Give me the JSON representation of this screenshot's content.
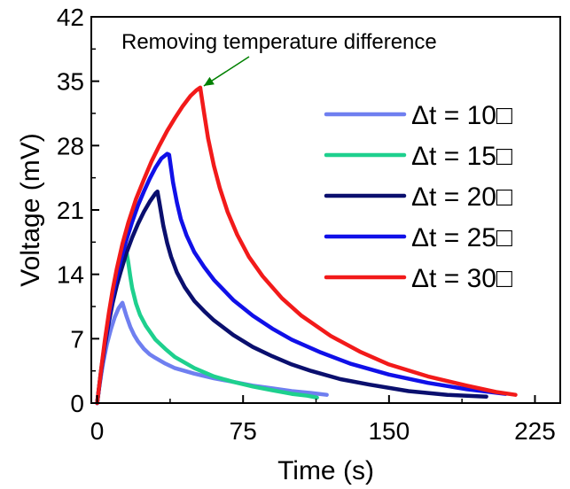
{
  "chart_data": {
    "type": "line",
    "xlabel": "Time (s)",
    "ylabel": "Voltage (mV)",
    "xlim": [
      -3,
      238
    ],
    "ylim": [
      0,
      42
    ],
    "xticks": [
      0,
      75,
      150,
      225
    ],
    "yticks": [
      0,
      7,
      14,
      21,
      28,
      35,
      42
    ],
    "grid": false,
    "legend_position": "right",
    "annotation": {
      "text": "Removing temperature difference",
      "color": "#008000",
      "points_to": [
        53,
        34
      ]
    },
    "series": [
      {
        "name": "Δt = 10□",
        "color": "#6F7FF0",
        "x": [
          0,
          1,
          2,
          3,
          5,
          7,
          9,
          11,
          13,
          15,
          17,
          19,
          21,
          24,
          27,
          30,
          35,
          40,
          50,
          60,
          70,
          80,
          90,
          100,
          110,
          118
        ],
        "y": [
          0,
          1.6,
          3.0,
          4.3,
          6.4,
          8.0,
          9.3,
          10.3,
          10.9,
          9.5,
          8.3,
          7.4,
          6.7,
          5.9,
          5.3,
          4.9,
          4.3,
          3.8,
          3.2,
          2.7,
          2.3,
          1.9,
          1.6,
          1.3,
          1.1,
          0.9
        ]
      },
      {
        "name": "Δt = 15□",
        "color": "#1ED08E",
        "x": [
          0,
          1,
          2,
          4,
          6,
          8,
          10,
          12,
          14,
          15,
          16,
          17,
          18,
          20,
          22,
          25,
          30,
          35,
          40,
          50,
          60,
          70,
          80,
          90,
          100,
          108,
          113
        ],
        "y": [
          0,
          1.8,
          3.5,
          6.5,
          9.0,
          11.1,
          12.9,
          14.5,
          15.9,
          16.6,
          15.3,
          13.8,
          12.5,
          10.8,
          9.6,
          8.4,
          6.9,
          5.9,
          5.0,
          3.8,
          2.9,
          2.3,
          1.8,
          1.4,
          1.0,
          0.8,
          0.6
        ]
      },
      {
        "name": "Δt = 20□",
        "color": "#0A0F6E",
        "x": [
          0,
          2,
          4,
          6,
          8,
          10,
          12,
          15,
          18,
          21,
          24,
          27,
          30,
          31,
          32,
          34,
          36,
          38,
          41,
          45,
          50,
          55,
          60,
          70,
          80,
          90,
          100,
          110,
          125,
          140,
          160,
          180,
          200
        ],
        "y": [
          0,
          3.4,
          6.3,
          8.8,
          10.9,
          12.7,
          14.2,
          16.3,
          18.0,
          19.5,
          20.8,
          21.9,
          22.8,
          23.0,
          21.8,
          19.3,
          17.4,
          15.9,
          14.2,
          12.6,
          11.1,
          10.0,
          9.0,
          7.4,
          6.1,
          5.1,
          4.2,
          3.5,
          2.6,
          2.0,
          1.3,
          0.9,
          0.7
        ]
      },
      {
        "name": "Δt = 25□",
        "color": "#1010E8",
        "x": [
          0,
          2,
          4,
          6,
          8,
          10,
          12,
          15,
          18,
          21,
          24,
          27,
          30,
          33,
          36,
          37,
          38,
          39,
          41,
          43,
          46,
          50,
          55,
          60,
          70,
          80,
          90,
          100,
          115,
          130,
          150,
          170,
          190,
          210
        ],
        "y": [
          0,
          3.5,
          6.6,
          9.3,
          11.6,
          13.6,
          15.4,
          17.7,
          19.7,
          21.5,
          23.0,
          24.4,
          25.6,
          26.6,
          27.1,
          27.0,
          25.5,
          24.0,
          21.8,
          20.0,
          18.2,
          16.4,
          14.8,
          13.4,
          11.2,
          9.5,
          8.1,
          6.9,
          5.5,
          4.3,
          3.1,
          2.2,
          1.5,
          1.0
        ]
      },
      {
        "name": "Δt = 30□",
        "color": "#F21A1A",
        "x": [
          0,
          2,
          4,
          6,
          8,
          10,
          13,
          16,
          20,
          24,
          28,
          32,
          36,
          40,
          44,
          48,
          51,
          53,
          55,
          57,
          60,
          63,
          67,
          72,
          78,
          85,
          95,
          105,
          120,
          135,
          150,
          170,
          190,
          205,
          215
        ],
        "y": [
          0,
          3.6,
          6.9,
          9.8,
          12.3,
          14.5,
          17.3,
          19.6,
          22.2,
          24.3,
          26.3,
          28.0,
          29.6,
          31.0,
          32.3,
          33.4,
          34.0,
          34.3,
          31.5,
          28.8,
          25.8,
          23.4,
          20.8,
          18.3,
          15.9,
          13.8,
          11.4,
          9.5,
          7.3,
          5.6,
          4.2,
          2.9,
          1.9,
          1.2,
          0.9
        ]
      }
    ]
  }
}
